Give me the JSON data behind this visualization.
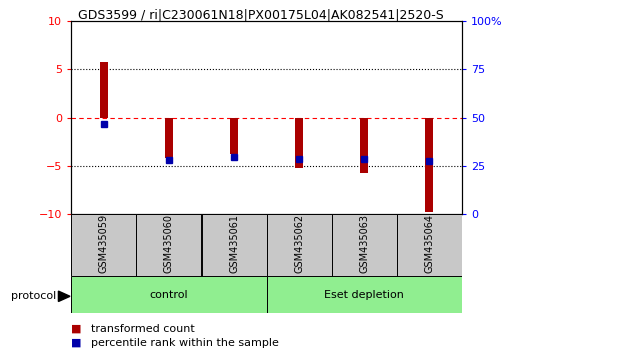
{
  "title": "GDS3599 / ri|C230061N18|PX00175L04|AK082541|2520-S",
  "samples": [
    "GSM435059",
    "GSM435060",
    "GSM435061",
    "GSM435062",
    "GSM435063",
    "GSM435064"
  ],
  "bar_values": [
    5.8,
    -4.2,
    -3.8,
    -5.2,
    -5.7,
    -9.8
  ],
  "percentile_values": [
    -0.7,
    -4.4,
    -4.1,
    -4.3,
    -4.3,
    -4.5
  ],
  "bar_color": "#AA0000",
  "dot_color": "#0000AA",
  "ylim_left": [
    -10,
    10
  ],
  "ylim_right": [
    0,
    100
  ],
  "left_yticks": [
    -10,
    -5,
    0,
    5,
    10
  ],
  "right_yticks": [
    0,
    25,
    50,
    75,
    100
  ],
  "right_yticklabels": [
    "0",
    "25",
    "50",
    "75",
    "100%"
  ],
  "hlines": [
    5,
    0,
    -5
  ],
  "hline_styles": [
    "dotted",
    "dashed_red",
    "dotted"
  ],
  "groups": [
    {
      "label": "control",
      "start": 0,
      "end": 3
    },
    {
      "label": "Eset depletion",
      "start": 3,
      "end": 6
    }
  ],
  "group_color": "#90EE90",
  "sample_box_color": "#C8C8C8",
  "protocol_label": "protocol",
  "legend_items": [
    {
      "color": "#AA0000",
      "label": "transformed count"
    },
    {
      "color": "#0000AA",
      "label": "percentile rank within the sample"
    }
  ],
  "bar_width": 0.12,
  "dot_size": 5
}
